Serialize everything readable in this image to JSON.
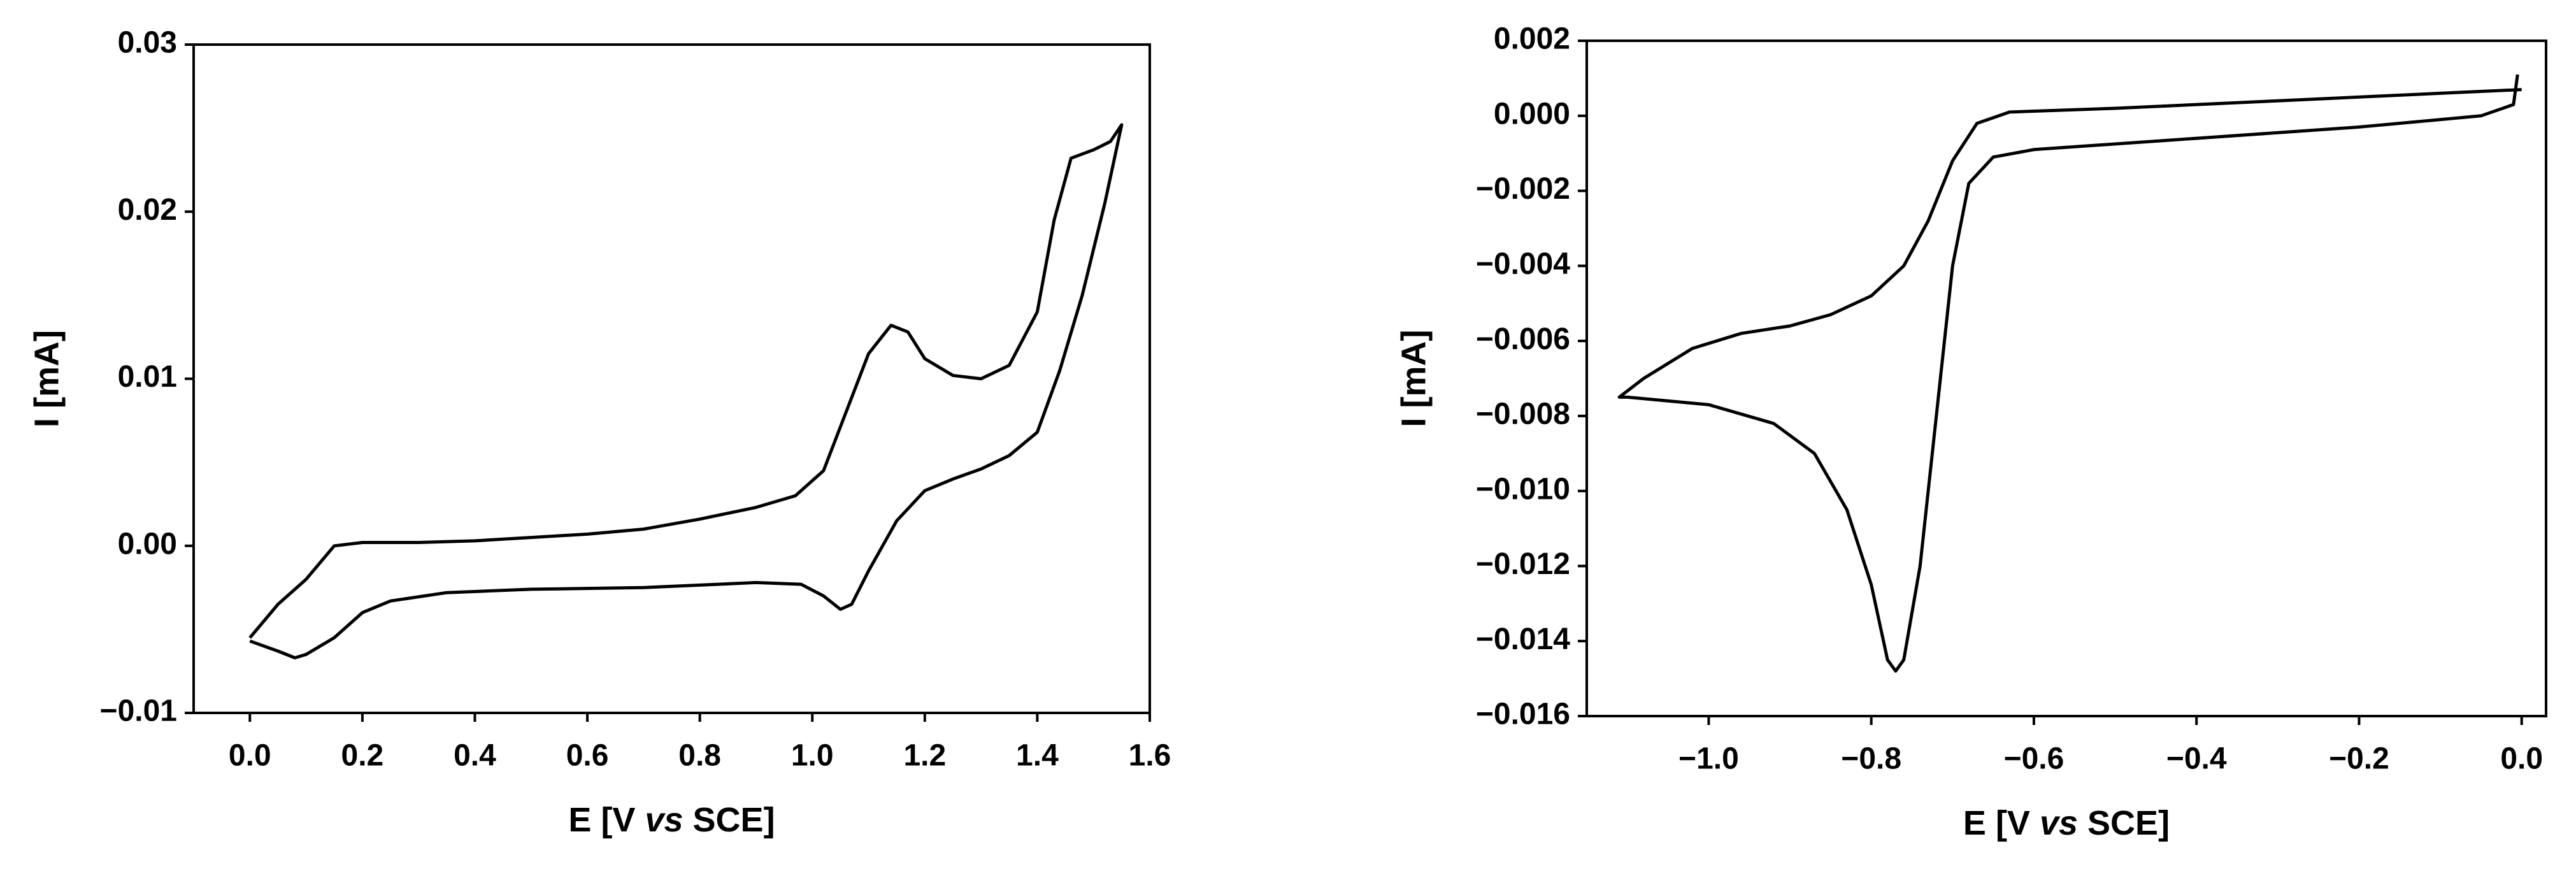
{
  "chart_data": [
    {
      "type": "line",
      "ylabel": "I [mA]",
      "xlabel": [
        "E [V ",
        "vs",
        " SCE]"
      ],
      "color": "#000000",
      "xlim": [
        -0.1,
        1.6
      ],
      "ylim": [
        -0.01,
        0.03
      ],
      "xticks": [
        {
          "value": 0,
          "label": "0.0"
        },
        0.2,
        0.4,
        0.6,
        0.8,
        {
          "value": 1,
          "label": "1.0"
        },
        1.2,
        1.4,
        1.6
      ],
      "yticks": [
        {
          "value": -0.01,
          "label": "−0.01"
        },
        {
          "value": 0,
          "label": "0.00"
        },
        0.01,
        0.02,
        0.03
      ],
      "x": [
        0.0,
        0.05,
        0.1,
        0.15,
        0.2,
        0.3,
        0.4,
        0.5,
        0.6,
        0.7,
        0.8,
        0.9,
        0.97,
        1.02,
        1.06,
        1.1,
        1.14,
        1.17,
        1.2,
        1.25,
        1.3,
        1.35,
        1.4,
        1.43,
        1.46,
        1.5,
        1.53,
        1.55,
        1.52,
        1.48,
        1.44,
        1.4,
        1.35,
        1.3,
        1.25,
        1.2,
        1.15,
        1.1,
        1.07,
        1.05,
        1.02,
        0.98,
        0.9,
        0.7,
        0.5,
        0.35,
        0.25,
        0.2,
        0.15,
        0.1,
        0.08,
        0.05,
        0.0
      ],
      "values": [
        -0.0055,
        -0.0035,
        -0.002,
        0.0,
        0.0002,
        0.0002,
        0.0003,
        0.0005,
        0.0007,
        0.001,
        0.0016,
        0.0023,
        0.003,
        0.0045,
        0.008,
        0.0115,
        0.0132,
        0.0128,
        0.0112,
        0.0102,
        0.01,
        0.0108,
        0.014,
        0.0195,
        0.0232,
        0.0237,
        0.0242,
        0.0252,
        0.0205,
        0.015,
        0.0105,
        0.0068,
        0.0054,
        0.0046,
        0.004,
        0.0033,
        0.0015,
        -0.0015,
        -0.0035,
        -0.0038,
        -0.003,
        -0.0023,
        -0.0022,
        -0.0025,
        -0.0026,
        -0.0028,
        -0.0033,
        -0.004,
        -0.0055,
        -0.0065,
        -0.0067,
        -0.0063,
        -0.0057
      ]
    },
    {
      "type": "line",
      "ylabel": "I [mA]",
      "xlabel": [
        "E [V ",
        "vs",
        " SCE]"
      ],
      "color": "#000000",
      "xlim": [
        -1.15,
        0.03
      ],
      "ylim": [
        -0.016,
        0.002
      ],
      "xticks": [
        {
          "value": -1,
          "label": "−1.0"
        },
        {
          "value": -0.8,
          "label": "−0.8"
        },
        {
          "value": -0.6,
          "label": "−0.6"
        },
        {
          "value": -0.4,
          "label": "−0.4"
        },
        {
          "value": -0.2,
          "label": "−0.2"
        },
        {
          "value": 0,
          "label": "0.0"
        }
      ],
      "yticks": [
        {
          "value": -0.016,
          "label": "−0.016"
        },
        {
          "value": -0.014,
          "label": "−0.014"
        },
        {
          "value": -0.012,
          "label": "−0.012"
        },
        {
          "value": -0.01,
          "label": "−0.010"
        },
        {
          "value": -0.008,
          "label": "−0.008"
        },
        {
          "value": -0.006,
          "label": "−0.006"
        },
        {
          "value": -0.004,
          "label": "−0.004"
        },
        {
          "value": -0.002,
          "label": "−0.002"
        },
        {
          "value": 0,
          "label": "0.000"
        },
        0.002
      ],
      "x": [
        -0.005,
        -0.01,
        -0.05,
        -0.2,
        -0.4,
        -0.6,
        -0.65,
        -0.68,
        -0.7,
        -0.72,
        -0.74,
        -0.76,
        -0.77,
        -0.78,
        -0.8,
        -0.83,
        -0.87,
        -0.92,
        -1.0,
        -1.1,
        -1.11,
        -1.08,
        -1.02,
        -0.96,
        -0.9,
        -0.85,
        -0.8,
        -0.76,
        -0.73,
        -0.7,
        -0.67,
        -0.63,
        -0.5,
        -0.3,
        -0.1,
        0.0
      ],
      "values": [
        0.0011,
        0.0003,
        0.0,
        -0.0003,
        -0.0006,
        -0.0009,
        -0.0011,
        -0.0018,
        -0.004,
        -0.008,
        -0.012,
        -0.0145,
        -0.0148,
        -0.0145,
        -0.0125,
        -0.0105,
        -0.009,
        -0.0082,
        -0.0077,
        -0.0075,
        -0.0075,
        -0.007,
        -0.0062,
        -0.0058,
        -0.0056,
        -0.0053,
        -0.0048,
        -0.004,
        -0.0028,
        -0.0012,
        -0.0002,
        0.0001,
        0.0002,
        0.0004,
        0.0006,
        0.0007
      ]
    }
  ]
}
